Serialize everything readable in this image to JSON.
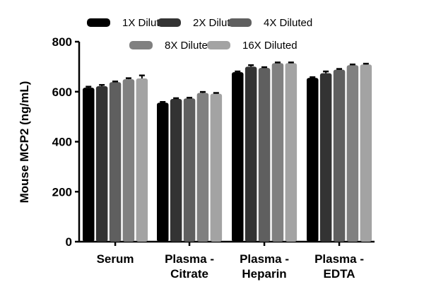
{
  "chart_data": {
    "type": "bar",
    "title": "",
    "xlabel": "",
    "ylabel": "Mouse MCP2 (ng/mL)",
    "ylim": [
      0,
      800
    ],
    "yticks": [
      0,
      200,
      400,
      600,
      800
    ],
    "categories": [
      [
        "Serum"
      ],
      [
        "Plasma -",
        "Citrate"
      ],
      [
        "Plasma -",
        "Heparin"
      ],
      [
        "Plasma -",
        "EDTA"
      ]
    ],
    "legend_position": "top",
    "grid": false,
    "series": [
      {
        "name": "1X Diluted",
        "color": "#000000",
        "values": [
          616,
          556,
          678,
          655
        ],
        "errors": [
          4,
          3,
          3,
          3
        ]
      },
      {
        "name": "2X Diluted",
        "color": "#333333",
        "values": [
          622,
          571,
          700,
          674
        ],
        "errors": [
          5,
          3,
          6,
          7
        ]
      },
      {
        "name": "4X Diluted",
        "color": "#5f5f5f",
        "values": [
          638,
          573,
          695,
          688
        ],
        "errors": [
          3,
          3,
          3,
          3
        ]
      },
      {
        "name": "8X Diluted",
        "color": "#808080",
        "values": [
          650,
          595,
          714,
          706
        ],
        "errors": [
          4,
          4,
          3,
          3
        ]
      },
      {
        "name": "16X Diluted",
        "color": "#a3a3a3",
        "values": [
          653,
          592,
          714,
          709
        ],
        "errors": [
          12,
          3,
          3,
          3
        ]
      }
    ]
  }
}
